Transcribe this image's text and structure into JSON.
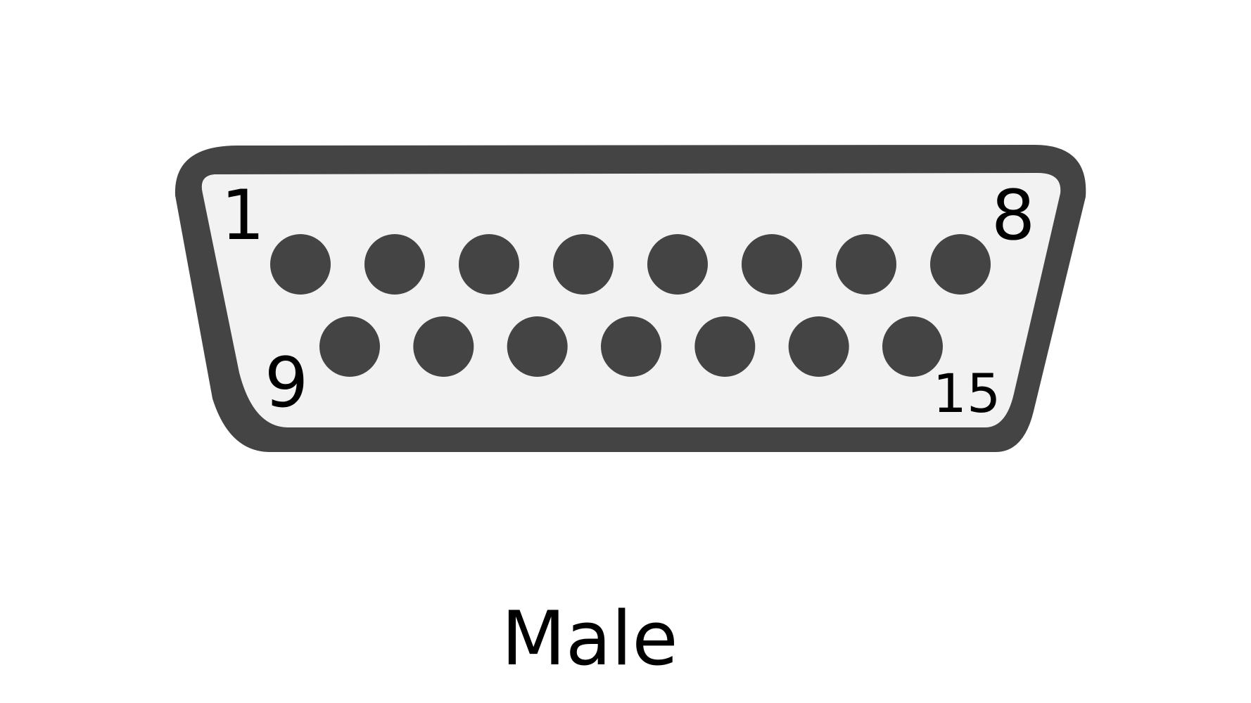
{
  "connector": {
    "pin_labels": {
      "first_top": "1",
      "last_top": "8",
      "first_bottom": "9",
      "last_bottom": "15"
    },
    "top_row_pin_count": 8,
    "bottom_row_pin_count": 7,
    "colors": {
      "shell": "#444444",
      "face": "#f2f2f2",
      "pin": "#444444",
      "text": "#000000"
    }
  },
  "caption": "Male"
}
